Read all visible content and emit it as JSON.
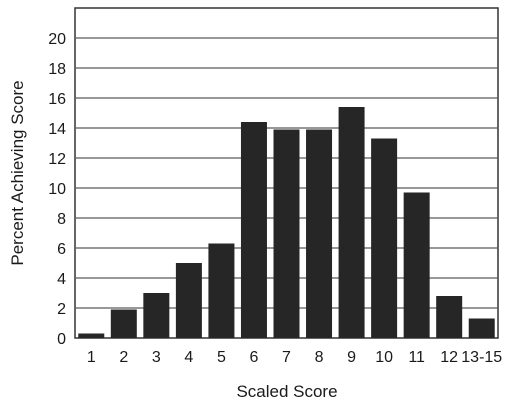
{
  "chart_data": {
    "type": "bar",
    "xlabel": "Scaled Score",
    "ylabel": "Percent Achieving Score",
    "categories": [
      "1",
      "2",
      "3",
      "4",
      "5",
      "6",
      "7",
      "8",
      "9",
      "10",
      "11",
      "12",
      "13-15"
    ],
    "values": [
      0.3,
      1.9,
      3.0,
      5.0,
      6.3,
      14.4,
      13.9,
      13.9,
      15.4,
      13.3,
      9.7,
      2.8,
      1.3
    ],
    "ylim": [
      0,
      22
    ],
    "yticks": [
      0,
      2,
      4,
      6,
      8,
      10,
      12,
      14,
      16,
      18,
      20
    ],
    "grid": "horizontal",
    "bar_color": "#262626",
    "grid_color": "#5a5a5a"
  }
}
